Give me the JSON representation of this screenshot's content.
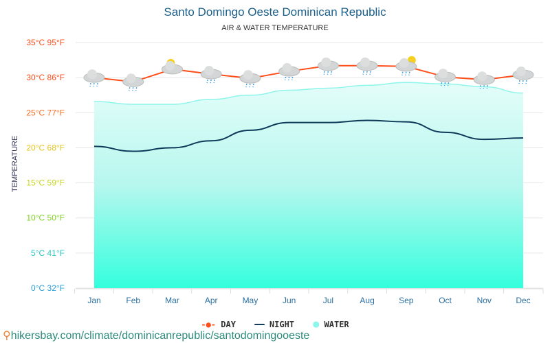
{
  "chart_data": {
    "type": "line",
    "title": "Santo Domingo Oeste Dominican Republic",
    "subtitle": "AIR & WATER TEMPERATURE",
    "ylabel": "TEMPERATURE",
    "ylim": [
      0,
      35
    ],
    "grid": true,
    "legend_position": "bottom",
    "yticks": [
      {
        "v": 35,
        "label": "35°C 95°F",
        "color": "#ff4e1a"
      },
      {
        "v": 30,
        "label": "30°C 86°F",
        "color": "#ff4e1a"
      },
      {
        "v": 25,
        "label": "25°C 77°F",
        "color": "#ff6a1a"
      },
      {
        "v": 20,
        "label": "20°C 68°F",
        "color": "#e6c619"
      },
      {
        "v": 15,
        "label": "15°C 59°F",
        "color": "#c8d41c"
      },
      {
        "v": 10,
        "label": "10°C 50°F",
        "color": "#7ed321"
      },
      {
        "v": 5,
        "label": "5°C 41°F",
        "color": "#2cc7c0"
      },
      {
        "v": 0,
        "label": "0°C 32°F",
        "color": "#2a9fd8"
      }
    ],
    "categories": [
      "Jan",
      "Feb",
      "Mar",
      "Apr",
      "May",
      "Jun",
      "Jul",
      "Aug",
      "Sep",
      "Oct",
      "Nov",
      "Dec"
    ],
    "series": [
      {
        "name": "DAY",
        "color": "#ff4e1a",
        "values": [
          30.0,
          29.4,
          31.2,
          30.5,
          29.9,
          30.9,
          31.7,
          31.7,
          31.6,
          30.1,
          29.7,
          30.4
        ]
      },
      {
        "name": "NIGHT",
        "color": "#0e3a5a",
        "values": [
          20.2,
          19.5,
          20.0,
          21.0,
          22.5,
          23.6,
          23.6,
          23.9,
          23.7,
          22.2,
          21.2,
          21.4
        ]
      },
      {
        "name": "WATER",
        "color": "#8ef5ea",
        "values": [
          26.6,
          26.2,
          26.2,
          26.9,
          27.5,
          28.2,
          28.5,
          28.9,
          29.3,
          29.1,
          28.7,
          27.8
        ]
      }
    ],
    "weather_icons": [
      "rain",
      "rain",
      "partly-sunny",
      "rain",
      "rain",
      "rain",
      "rain",
      "rain",
      "partly-sunny-rain",
      "rain",
      "rain",
      "rain"
    ]
  },
  "footer": {
    "url": "hikersbay.com/climate/dominicanrepublic/santodomingooeste"
  }
}
